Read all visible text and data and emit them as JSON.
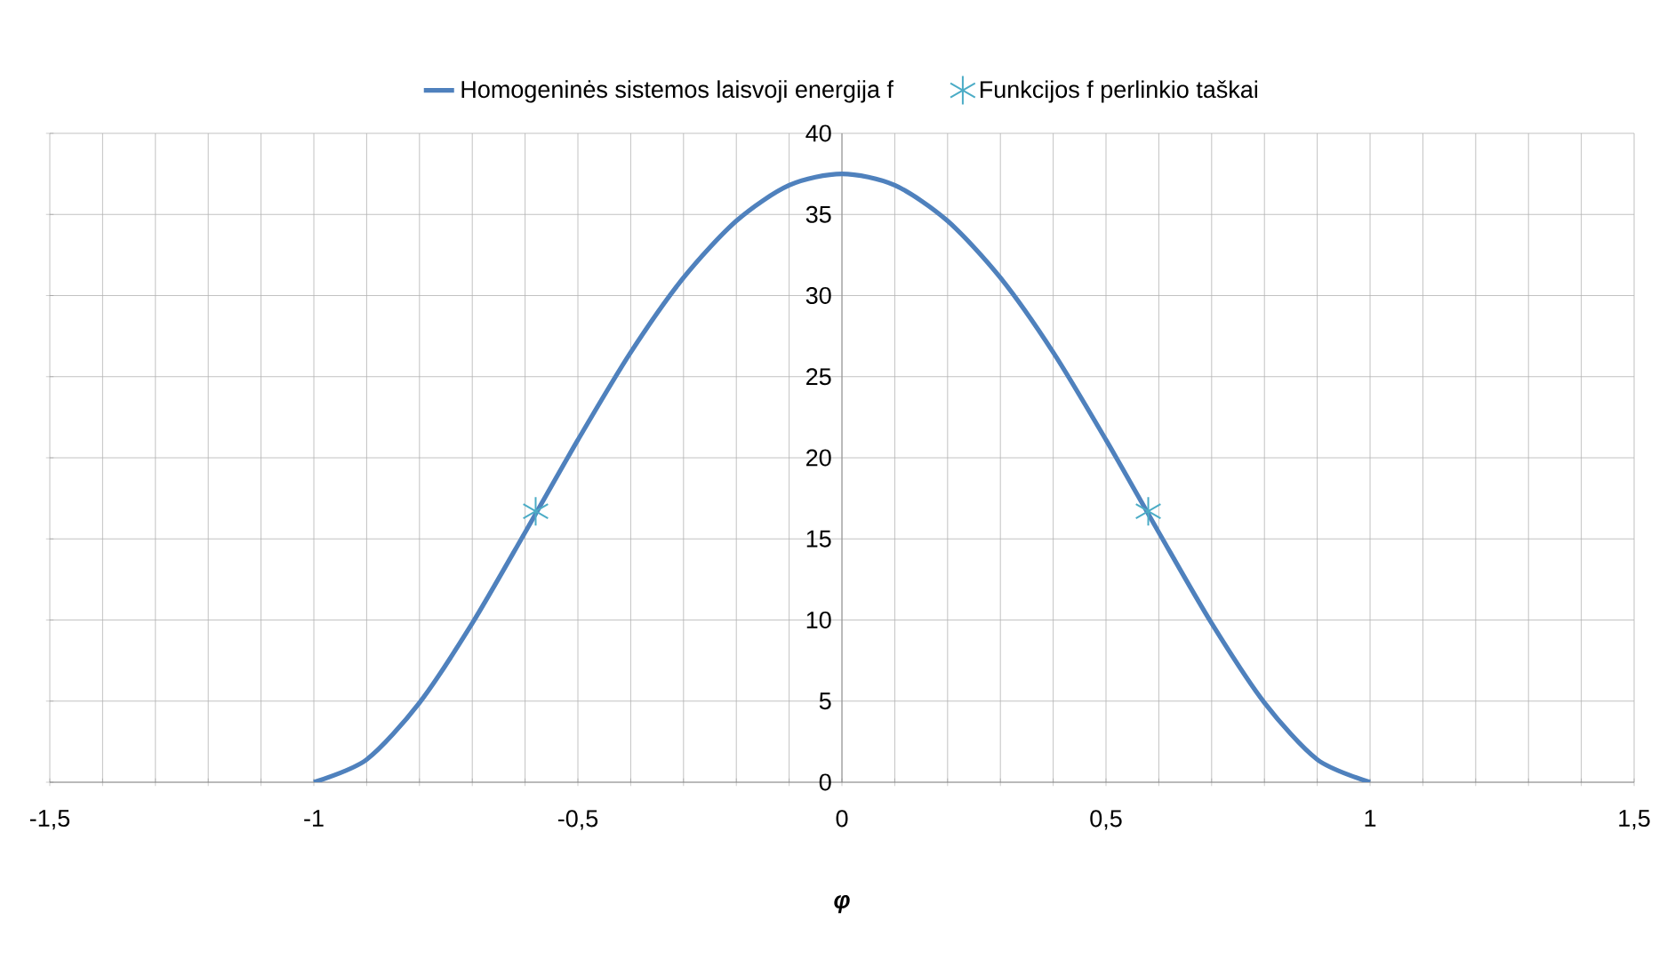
{
  "chart_data": {
    "type": "line",
    "xlabel": "**φ**",
    "legend": "top",
    "grid": true,
    "series": [
      {
        "name": "Homogeninės sistemos laisvoji energija f",
        "color": "#4f81bd",
        "marker": "none",
        "line_style": "solid",
        "x": [
          -1,
          -0.9,
          -0.8,
          -0.7,
          -0.6,
          -0.5,
          -0.4,
          -0.3,
          -0.2,
          -0.1,
          0,
          0.1,
          0.2,
          0.3,
          0.4,
          0.5,
          0.6,
          0.7,
          0.8,
          0.9,
          1
        ],
        "values": [
          0,
          1.4,
          4.9,
          9.8,
          15.4,
          21.1,
          26.5,
          31.1,
          34.6,
          36.8,
          37.5,
          36.8,
          34.6,
          31.1,
          26.5,
          21.1,
          15.4,
          9.8,
          4.9,
          1.4,
          0
        ]
      },
      {
        "name": "Funkcijos f perlinkio taškai",
        "type": "scatter",
        "color": "#4bacc6",
        "marker": "cross",
        "x": [
          -0.58,
          0.58
        ],
        "values": [
          16.7,
          16.7
        ]
      }
    ],
    "xlim": [
      -1.5,
      1.5
    ],
    "ylim": [
      0,
      40
    ],
    "xticks": [
      {
        "value": -1.5,
        "label": "-1,5"
      },
      {
        "value": -1.4,
        "label": null
      },
      {
        "value": -1.3,
        "label": null
      },
      {
        "value": -1.2,
        "label": null
      },
      {
        "value": -1.1,
        "label": null
      },
      -1,
      {
        "value": -0.9,
        "label": null
      },
      {
        "value": -0.8,
        "label": null
      },
      {
        "value": -0.7,
        "label": null
      },
      {
        "value": -0.6,
        "label": null
      },
      {
        "value": -0.5,
        "label": "-0,5"
      },
      {
        "value": -0.4,
        "label": null
      },
      {
        "value": -0.3,
        "label": null
      },
      {
        "value": -0.2,
        "label": null
      },
      {
        "value": -0.1,
        "label": null
      },
      0,
      {
        "value": 0.1,
        "label": null
      },
      {
        "value": 0.2,
        "label": null
      },
      {
        "value": 0.3,
        "label": null
      },
      {
        "value": 0.4,
        "label": null
      },
      {
        "value": 0.5,
        "label": "0,5"
      },
      {
        "value": 0.6,
        "label": null
      },
      {
        "value": 0.7,
        "label": null
      },
      {
        "value": 0.8,
        "label": null
      },
      {
        "value": 0.9,
        "label": null
      },
      1,
      {
        "value": 1.1,
        "label": null
      },
      {
        "value": 1.2,
        "label": null
      },
      {
        "value": 1.3,
        "label": null
      },
      {
        "value": 1.4,
        "label": null
      },
      {
        "value": 1.5,
        "label": "1,5"
      }
    ],
    "yticks": [
      0,
      5,
      10,
      15,
      20,
      25,
      30,
      35,
      40
    ]
  }
}
